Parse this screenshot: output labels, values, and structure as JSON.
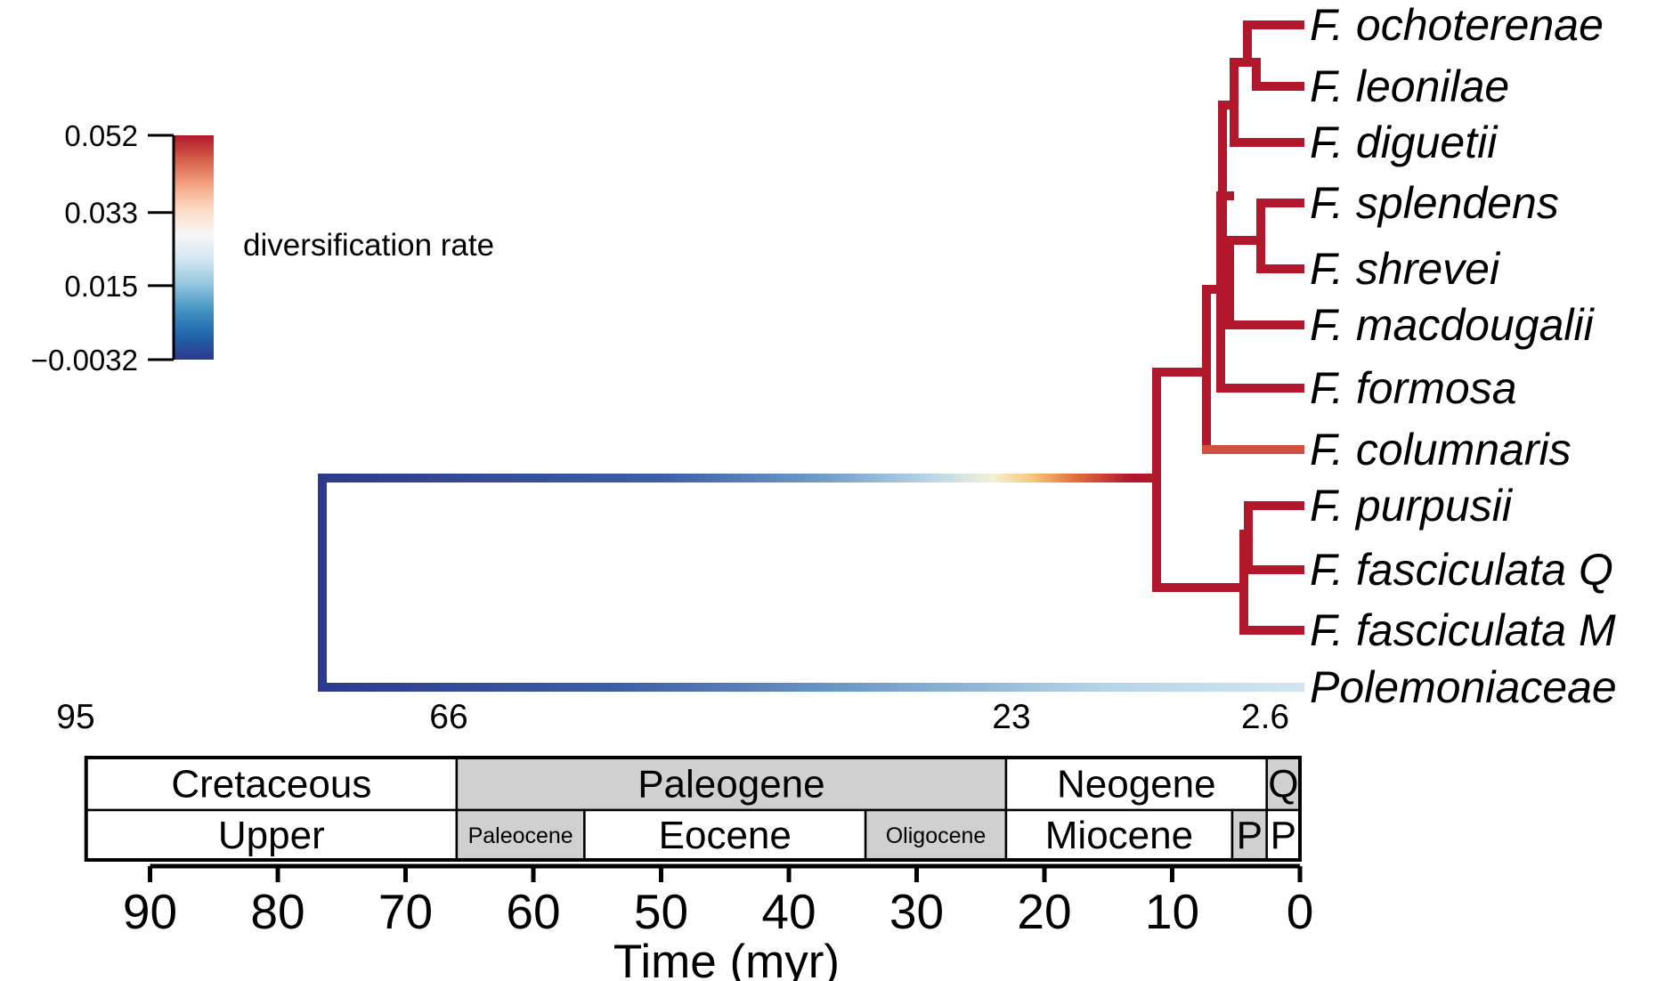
{
  "legend": {
    "title": "diversification rate",
    "ticks": [
      "0.052",
      "0.033",
      "0.015",
      "−0.0032"
    ],
    "tick_values": [
      0.052,
      0.033,
      0.015,
      -0.0032
    ],
    "colors": [
      "#b2182b",
      "#d6604d",
      "#f4a582",
      "#fddbc7",
      "#f7f7f7",
      "#d1e5f0",
      "#92c5de",
      "#4393c3",
      "#2166ac",
      "#2d3a8c"
    ]
  },
  "tree": {
    "tips": [
      "F. ochoterenae",
      "F. leonilae",
      "F. diguetii",
      "F. splendens",
      "F. shrevei",
      "F. macdougalii",
      "F. formosa",
      "F. columnaris",
      "F. purpusii",
      "F. fasciculata Q",
      "F. fasciculata M",
      "Polemoniaceae"
    ],
    "colors": {
      "rate_high": "#b2182b",
      "rate_columnaris": "#d1503e",
      "rate_low": "#2d3a8c",
      "rate_outgroup_tip": "#d1e5f0"
    }
  },
  "boundary_ages": [
    "95",
    "66",
    "23",
    "2.6"
  ],
  "timescale": {
    "periods": [
      {
        "label": "Cretaceous",
        "start": 95,
        "end": 66,
        "shaded": false
      },
      {
        "label": "Paleogene",
        "start": 66,
        "end": 23,
        "shaded": true
      },
      {
        "label": "Neogene",
        "start": 23,
        "end": 2.6,
        "shaded": false
      },
      {
        "label": "Q",
        "start": 2.6,
        "end": 0,
        "shaded": true
      }
    ],
    "epochs": [
      {
        "label": "Upper",
        "start": 95,
        "end": 66,
        "shaded": false
      },
      {
        "label": "Paleocene",
        "start": 66,
        "end": 56,
        "shaded": true
      },
      {
        "label": "Eocene",
        "start": 56,
        "end": 34,
        "shaded": false
      },
      {
        "label": "Oligocene",
        "start": 34,
        "end": 23,
        "shaded": true
      },
      {
        "label": "Miocene",
        "start": 23,
        "end": 5.3,
        "shaded": false
      },
      {
        "label": "P",
        "start": 5.3,
        "end": 2.6,
        "shaded": true
      },
      {
        "label": "P",
        "start": 2.6,
        "end": 0,
        "shaded": false
      }
    ],
    "shade_color": "#d0d0d0"
  },
  "axis": {
    "title": "Time (myr)",
    "ticks": [
      "90",
      "80",
      "70",
      "60",
      "50",
      "40",
      "30",
      "20",
      "10",
      "0"
    ]
  }
}
